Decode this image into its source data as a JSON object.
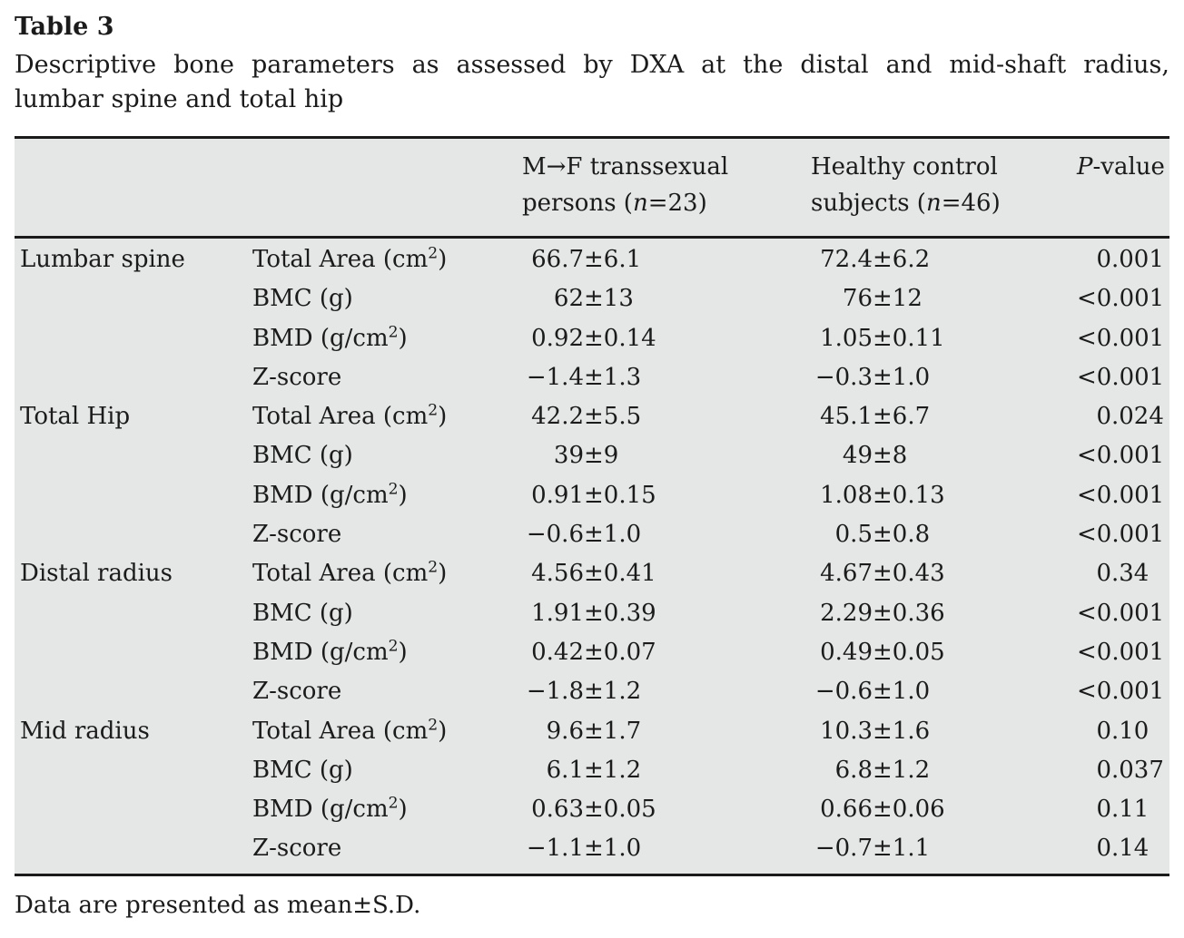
{
  "title": "Table 3",
  "caption_line1": "Descriptive bone parameters as assessed by DXA at the distal and mid-shaft radius,",
  "caption_line2": "lumbar spine and total hip",
  "symbols": {
    "pm": "±"
  },
  "colors": {
    "table_bg": "#e5e6e6",
    "rule": "#1b1b1b",
    "text": "#1b1b1b",
    "page_bg": "#ffffff"
  },
  "header": {
    "mtf": {
      "line1": "M→F transsexual",
      "line2_pre": "persons (",
      "n": "n",
      "line2_post": "=23)"
    },
    "ctrl": {
      "line1": "Healthy control",
      "line2_pre": "subjects (",
      "n": "n",
      "line2_post": "=46)"
    },
    "p": {
      "italic": "P",
      "rest": "-value"
    }
  },
  "groups": [
    {
      "region": "Lumbar spine",
      "rows": [
        {
          "param_pre": "Total Area (cm",
          "param_sup": "2",
          "param_post": ")",
          "mtf_mean": "66.7",
          "mtf_sd": "6.1",
          "ctrl_mean": "72.4",
          "ctrl_sd": "6.2",
          "p_lead": "0",
          "p_frac": ".001"
        },
        {
          "param_pre": "BMC (g)",
          "param_sup": "",
          "param_post": "",
          "mtf_mean": "62",
          "mtf_sd": "13",
          "ctrl_mean": "76",
          "ctrl_sd": "12",
          "p_lead": "<0",
          "p_frac": ".001"
        },
        {
          "param_pre": "BMD (g/cm",
          "param_sup": "2",
          "param_post": ")",
          "mtf_mean": "0.92",
          "mtf_sd": "0.14",
          "ctrl_mean": "1.05",
          "ctrl_sd": "0.11",
          "p_lead": "<0",
          "p_frac": ".001"
        },
        {
          "param_pre": "Z-score",
          "param_sup": "",
          "param_post": "",
          "mtf_mean": "−1.4",
          "mtf_sd": "1.3",
          "ctrl_mean": "−0.3",
          "ctrl_sd": "1.0",
          "p_lead": "<0",
          "p_frac": ".001"
        }
      ]
    },
    {
      "region": "Total Hip",
      "rows": [
        {
          "param_pre": "Total Area (cm",
          "param_sup": "2",
          "param_post": ")",
          "mtf_mean": "42.2",
          "mtf_sd": "5.5",
          "ctrl_mean": "45.1",
          "ctrl_sd": "6.7",
          "p_lead": "0",
          "p_frac": ".024"
        },
        {
          "param_pre": "BMC (g)",
          "param_sup": "",
          "param_post": "",
          "mtf_mean": "39",
          "mtf_sd": "9",
          "ctrl_mean": "49",
          "ctrl_sd": "8",
          "p_lead": "<0",
          "p_frac": ".001"
        },
        {
          "param_pre": "BMD (g/cm",
          "param_sup": "2",
          "param_post": ")",
          "mtf_mean": "0.91",
          "mtf_sd": "0.15",
          "ctrl_mean": "1.08",
          "ctrl_sd": "0.13",
          "p_lead": "<0",
          "p_frac": ".001"
        },
        {
          "param_pre": "Z-score",
          "param_sup": "",
          "param_post": "",
          "mtf_mean": "−0.6",
          "mtf_sd": "1.0",
          "ctrl_mean": "0.5",
          "ctrl_sd": "0.8",
          "p_lead": "<0",
          "p_frac": ".001"
        }
      ]
    },
    {
      "region": "Distal radius",
      "rows": [
        {
          "param_pre": "Total Area (cm",
          "param_sup": "2",
          "param_post": ")",
          "mtf_mean": "4.56",
          "mtf_sd": "0.41",
          "ctrl_mean": "4.67",
          "ctrl_sd": "0.43",
          "p_lead": "0",
          "p_frac": ".34"
        },
        {
          "param_pre": "BMC (g)",
          "param_sup": "",
          "param_post": "",
          "mtf_mean": "1.91",
          "mtf_sd": "0.39",
          "ctrl_mean": "2.29",
          "ctrl_sd": "0.36",
          "p_lead": "<0",
          "p_frac": ".001"
        },
        {
          "param_pre": "BMD (g/cm",
          "param_sup": "2",
          "param_post": ")",
          "mtf_mean": "0.42",
          "mtf_sd": "0.07",
          "ctrl_mean": "0.49",
          "ctrl_sd": "0.05",
          "p_lead": "<0",
          "p_frac": ".001"
        },
        {
          "param_pre": "Z-score",
          "param_sup": "",
          "param_post": "",
          "mtf_mean": "−1.8",
          "mtf_sd": "1.2",
          "ctrl_mean": "−0.6",
          "ctrl_sd": "1.0",
          "p_lead": "<0",
          "p_frac": ".001"
        }
      ]
    },
    {
      "region": "Mid radius",
      "rows": [
        {
          "param_pre": "Total Area (cm",
          "param_sup": "2",
          "param_post": ")",
          "mtf_mean": "9.6",
          "mtf_sd": "1.7",
          "ctrl_mean": "10.3",
          "ctrl_sd": "1.6",
          "p_lead": "0",
          "p_frac": ".10"
        },
        {
          "param_pre": "BMC (g)",
          "param_sup": "",
          "param_post": "",
          "mtf_mean": "6.1",
          "mtf_sd": "1.2",
          "ctrl_mean": "6.8",
          "ctrl_sd": "1.2",
          "p_lead": "0",
          "p_frac": ".037"
        },
        {
          "param_pre": "BMD (g/cm",
          "param_sup": "2",
          "param_post": ")",
          "mtf_mean": "0.63",
          "mtf_sd": "0.05",
          "ctrl_mean": "0.66",
          "ctrl_sd": "0.06",
          "p_lead": "0",
          "p_frac": ".11"
        },
        {
          "param_pre": "Z-score",
          "param_sup": "",
          "param_post": "",
          "mtf_mean": "−1.1",
          "mtf_sd": "1.0",
          "ctrl_mean": "−0.7",
          "ctrl_sd": "1.1",
          "p_lead": "0",
          "p_frac": ".14"
        }
      ]
    }
  ],
  "footnote": "Data are presented as mean±S.D."
}
